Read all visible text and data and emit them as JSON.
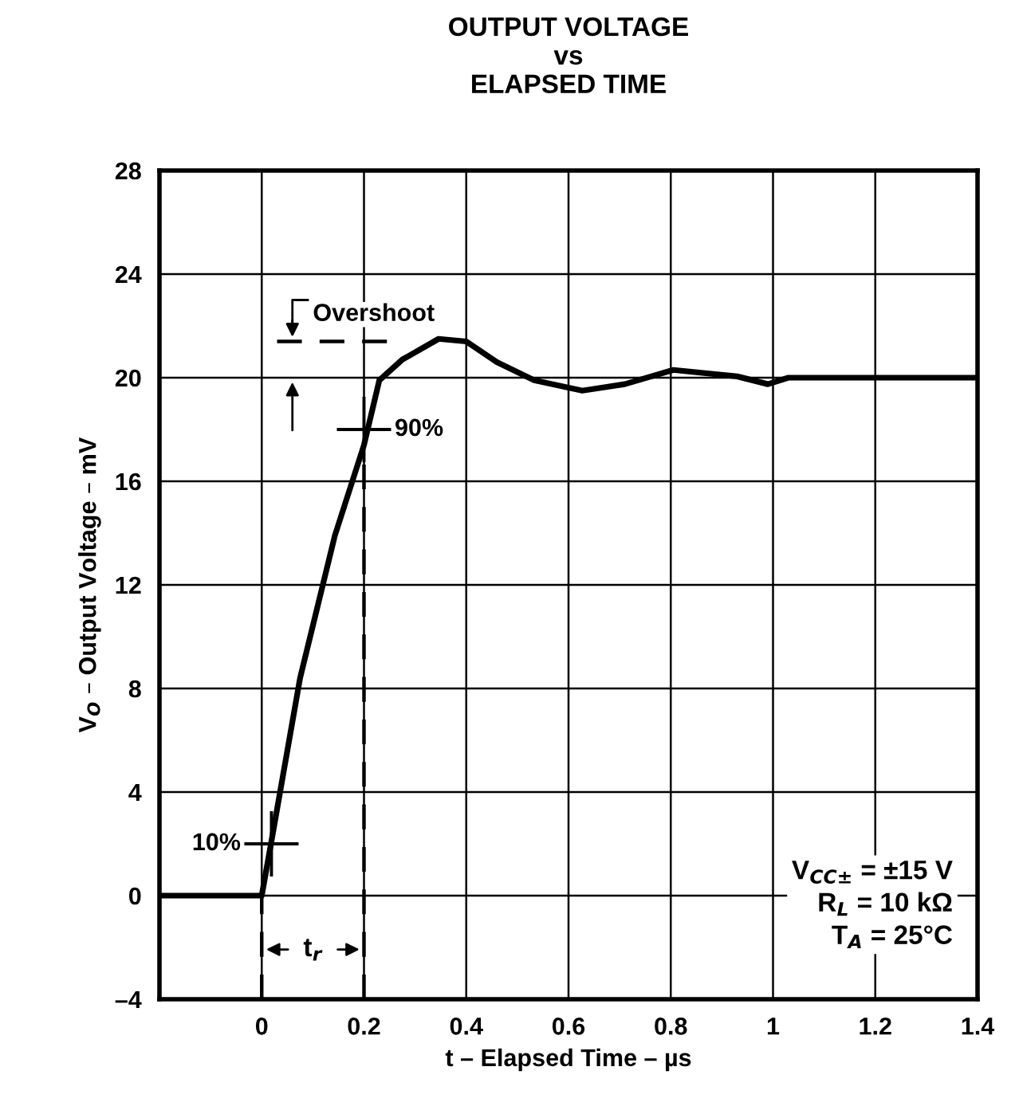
{
  "chart_data": {
    "type": "line",
    "title": "OUTPUT VOLTAGE\nvs\nELAPSED TIME",
    "xlabel": "t – Elapsed Time – µs",
    "ylabel": "V$_{O}$ – Output Voltage – mV",
    "series": [
      {
        "color": "#000000",
        "x": [
          -0.2,
          0.0,
          0.019,
          0.075,
          0.143,
          0.2,
          0.23,
          0.275,
          0.346,
          0.4,
          0.46,
          0.533,
          0.627,
          0.71,
          0.805,
          0.93,
          0.99,
          1.03,
          1.4
        ],
        "values": [
          0,
          0,
          2.1,
          8.4,
          13.9,
          17.4,
          19.9,
          20.7,
          21.5,
          21.4,
          20.6,
          19.9,
          19.5,
          19.75,
          20.3,
          20.05,
          19.75,
          20,
          20
        ]
      }
    ],
    "xlim": [
      -0.2,
      1.4
    ],
    "ylim": [
      -4,
      28
    ],
    "xticks": [
      {
        "value": -0.2,
        "label": null
      },
      0,
      0.2,
      0.4,
      0.6,
      0.8,
      1,
      1.2,
      1.4
    ],
    "yticks": [
      {
        "value": -4,
        "label": "–4"
      },
      0,
      4,
      8,
      12,
      16,
      20,
      24,
      28
    ],
    "grid": true,
    "line_style": "solid",
    "marker": "none",
    "ref_lines": [
      {
        "axis": "x",
        "value": 0,
        "line_style": "dashed",
        "color": "#000000"
      },
      {
        "axis": "x",
        "value": 0.2,
        "line_style": "dashed",
        "color": "#000000"
      },
      {
        "axis": "y",
        "value": 21.4,
        "label": "Overshoot",
        "line_style": "dashed",
        "color": "#000000"
      }
    ],
    "annotations": [
      {
        "text": "10%",
        "x": 0.019,
        "y": 2
      },
      {
        "text": "90%",
        "x": 0.2,
        "y": 18
      },
      "t$_{r}$",
      "V$_{CC±}$ = ±15 V\nR$_{L}$ = 10 kΩ\nT$_{A}$ = 25°C"
    ]
  }
}
